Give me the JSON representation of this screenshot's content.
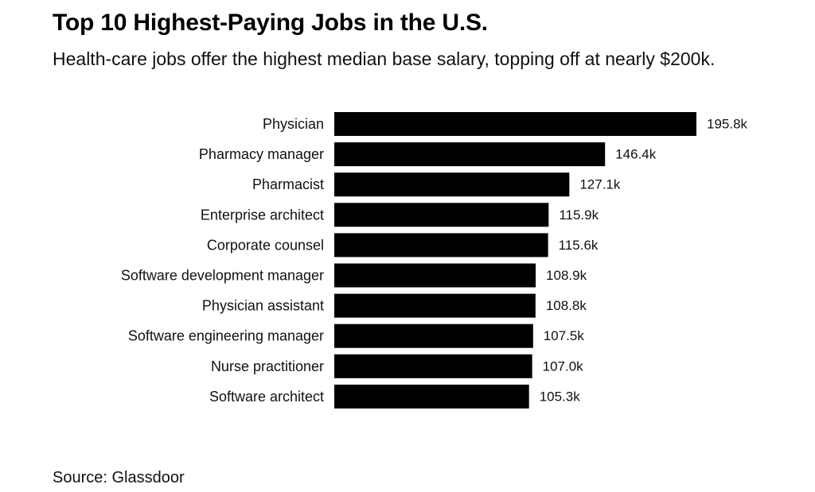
{
  "chart_data": {
    "type": "bar",
    "orientation": "horizontal",
    "title": "Top 10 Highest-Paying Jobs in the U.S.",
    "subtitle": "Health-care jobs offer the highest median base salary, topping off at nearly $200k.",
    "categories": [
      "Physician",
      "Pharmacy manager",
      "Pharmacist",
      "Enterprise architect",
      "Corporate counsel",
      "Software development manager",
      "Physician assistant",
      "Software engineering manager",
      "Nurse practitioner",
      "Software architect"
    ],
    "values": [
      195.8,
      146.4,
      127.1,
      115.9,
      115.6,
      108.9,
      108.8,
      107.5,
      107.0,
      105.3
    ],
    "value_labels": [
      "195.8k",
      "146.4k",
      "127.1k",
      "115.9k",
      "115.6k",
      "108.9k",
      "108.8k",
      "107.5k",
      "107.0k",
      "105.3k"
    ],
    "unit": "k",
    "xlim": [
      0,
      195.8
    ],
    "grid": false,
    "bar_color": "#000000",
    "source": "Source: Glassdoor"
  }
}
